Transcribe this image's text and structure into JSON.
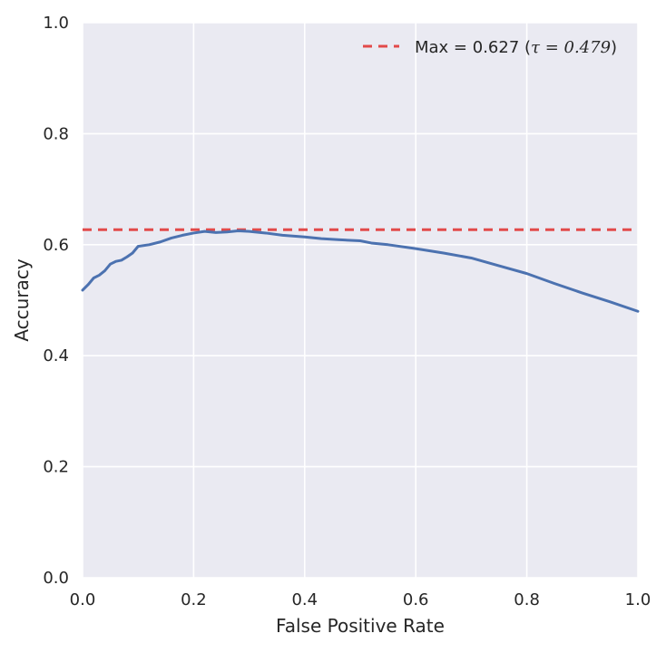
{
  "chart_data": {
    "type": "line",
    "title": "",
    "xlabel": "False Positive Rate",
    "ylabel": "Accuracy",
    "xlim": [
      0.0,
      1.0
    ],
    "ylim": [
      0.0,
      1.0
    ],
    "xticks": [
      "0.0",
      "0.2",
      "0.4",
      "0.6",
      "0.8",
      "1.0"
    ],
    "yticks": [
      "0.0",
      "0.2",
      "0.4",
      "0.6",
      "0.8",
      "1.0"
    ],
    "grid": true,
    "legend_position": "top-right",
    "colors": {
      "background": "#EAEAF2",
      "grid": "#FFFFFF",
      "series": "#4C72B0",
      "reference": "#E24A4A"
    },
    "series": [
      {
        "x": [
          0.0,
          0.01,
          0.02,
          0.03,
          0.04,
          0.05,
          0.06,
          0.07,
          0.08,
          0.09,
          0.1,
          0.12,
          0.14,
          0.16,
          0.18,
          0.2,
          0.22,
          0.24,
          0.26,
          0.28,
          0.3,
          0.33,
          0.36,
          0.4,
          0.43,
          0.46,
          0.5,
          0.52,
          0.55,
          0.6,
          0.65,
          0.7,
          0.75,
          0.8,
          0.85,
          0.9,
          0.95,
          1.0
        ],
        "values": [
          0.518,
          0.528,
          0.54,
          0.545,
          0.553,
          0.565,
          0.57,
          0.572,
          0.578,
          0.585,
          0.597,
          0.6,
          0.605,
          0.612,
          0.617,
          0.621,
          0.624,
          0.622,
          0.623,
          0.625,
          0.624,
          0.621,
          0.617,
          0.614,
          0.611,
          0.609,
          0.607,
          0.603,
          0.6,
          0.593,
          0.585,
          0.576,
          0.562,
          0.548,
          0.53,
          0.513,
          0.497,
          0.48
        ]
      }
    ],
    "reference_line": {
      "label": "Max = 0.627 (",
      "tau": "τ = 0.479",
      "label_end": ")",
      "y": 0.627,
      "style": "dashed"
    }
  }
}
